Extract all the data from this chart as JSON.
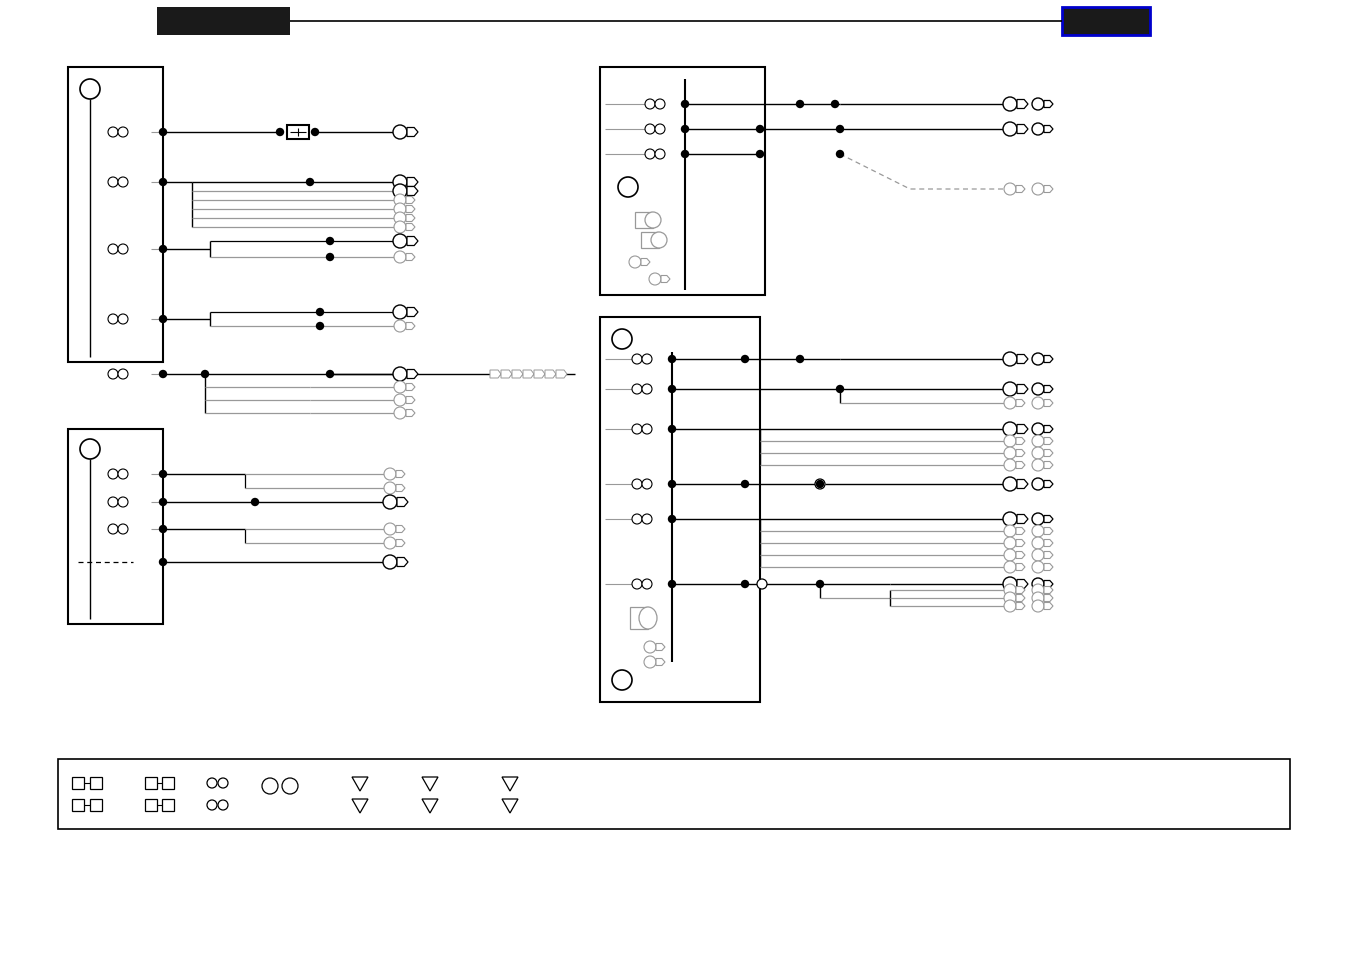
{
  "bg_color": "#ffffff",
  "black": "#000000",
  "gray": "#999999",
  "dark": "#1a1a1a",
  "blue": "#0000cc",
  "fig_width": 13.5,
  "fig_height": 9.54
}
